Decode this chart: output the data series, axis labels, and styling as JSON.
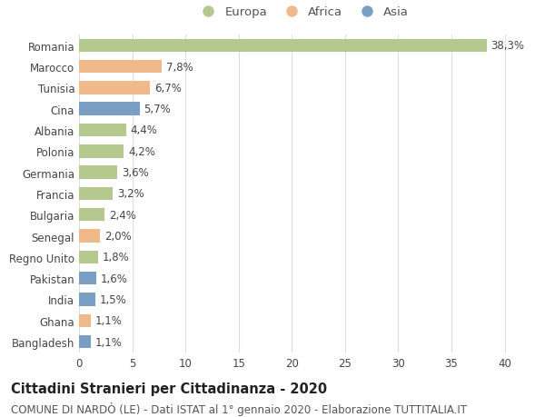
{
  "categories": [
    "Romania",
    "Marocco",
    "Tunisia",
    "Cina",
    "Albania",
    "Polonia",
    "Germania",
    "Francia",
    "Bulgaria",
    "Senegal",
    "Regno Unito",
    "Pakistan",
    "India",
    "Ghana",
    "Bangladesh"
  ],
  "values": [
    38.3,
    7.8,
    6.7,
    5.7,
    4.4,
    4.2,
    3.6,
    3.2,
    2.4,
    2.0,
    1.8,
    1.6,
    1.5,
    1.1,
    1.1
  ],
  "labels": [
    "38,3%",
    "7,8%",
    "6,7%",
    "5,7%",
    "4,4%",
    "4,2%",
    "3,6%",
    "3,2%",
    "2,4%",
    "2,0%",
    "1,8%",
    "1,6%",
    "1,5%",
    "1,1%",
    "1,1%"
  ],
  "continents": [
    "Europa",
    "Africa",
    "Africa",
    "Asia",
    "Europa",
    "Europa",
    "Europa",
    "Europa",
    "Europa",
    "Africa",
    "Europa",
    "Asia",
    "Asia",
    "Africa",
    "Asia"
  ],
  "colors": {
    "Europa": "#b5c98e",
    "Africa": "#f0b989",
    "Asia": "#7b9fc4"
  },
  "xlim": [
    0,
    42
  ],
  "xticks": [
    0,
    5,
    10,
    15,
    20,
    25,
    30,
    35,
    40
  ],
  "title": "Cittadini Stranieri per Cittadinanza - 2020",
  "subtitle": "COMUNE DI NARDÒ (LE) - Dati ISTAT al 1° gennaio 2020 - Elaborazione TUTTITALIA.IT",
  "background_color": "#ffffff",
  "grid_color": "#dddddd",
  "bar_height": 0.62,
  "label_fontsize": 8.5,
  "title_fontsize": 10.5,
  "subtitle_fontsize": 8.5,
  "tick_fontsize": 8.5,
  "ytick_fontsize": 8.5,
  "legend_fontsize": 9.5
}
